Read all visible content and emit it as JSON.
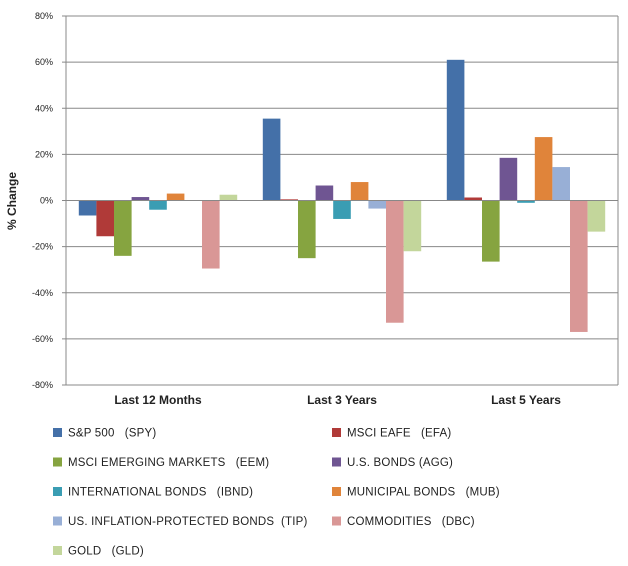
{
  "chart_data": {
    "type": "bar",
    "title": "",
    "xlabel": "",
    "ylabel": "% Change",
    "ylim": [
      -80,
      80
    ],
    "ytick_step": 20,
    "ytick_suffix": "%",
    "grid": true,
    "legend_position": "bottom",
    "categories": [
      "Last 12 Months",
      "Last 3 Years",
      "Last 5 Years"
    ],
    "series": [
      {
        "name": "S&P 500   (SPY)",
        "color": "#4470a8",
        "values": [
          -6.5,
          35.5,
          61
        ]
      },
      {
        "name": "MSCI EAFE   (EFA)",
        "color": "#b03a38",
        "values": [
          -15.5,
          0.5,
          1.3
        ]
      },
      {
        "name": "MSCI EMERGING MARKETS   (EEM)",
        "color": "#86a440",
        "values": [
          -24,
          -25,
          -26.5
        ]
      },
      {
        "name": "U.S. BONDS (AGG)",
        "color": "#6f5592",
        "values": [
          1.5,
          6.5,
          18.5
        ]
      },
      {
        "name": "INTERNATIONAL BONDS   (IBND)",
        "color": "#3a9db3",
        "values": [
          -4,
          -8,
          -1
        ]
      },
      {
        "name": "MUNICIPAL BONDS   (MUB)",
        "color": "#e0843a",
        "values": [
          3,
          8,
          27.5
        ]
      },
      {
        "name": "US. INFLATION-PROTECTED BONDS  (TIP)",
        "color": "#98afd6",
        "values": [
          0.2,
          -3.5,
          14.5
        ]
      },
      {
        "name": "COMMODITIES   (DBC)",
        "color": "#d99796",
        "values": [
          -29.5,
          -53,
          -57
        ]
      },
      {
        "name": "GOLD   (GLD)",
        "color": "#c3d69b",
        "values": [
          2.5,
          -22,
          -13.5
        ]
      }
    ]
  }
}
